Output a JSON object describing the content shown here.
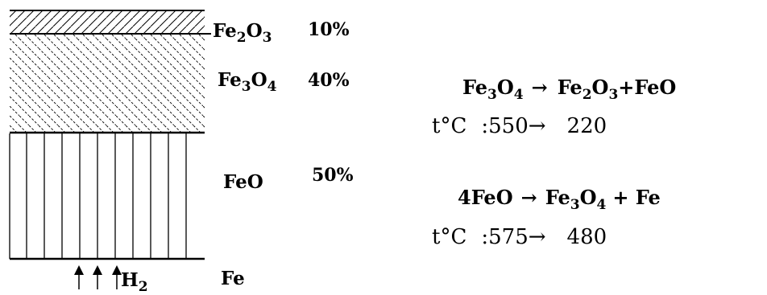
{
  "layers": [
    {
      "formula": "Fe",
      "sub": "2",
      "formula2": "O",
      "sub2": "3",
      "percent": "10%"
    },
    {
      "formula": "Fe",
      "sub": "3",
      "formula2": "O",
      "sub2": "4",
      "percent": "40%"
    },
    {
      "formula": "FeO",
      "percent": "50%"
    },
    {
      "formula": "Fe"
    }
  ],
  "gas": {
    "symbol": "H",
    "sub": "2"
  },
  "reaction1": {
    "lhs_a": "Fe",
    "lhs_sub1": "3",
    "lhs_b": "O",
    "lhs_sub2": "4",
    "arrow": "→",
    "rhs_a": "Fe",
    "rhs_sub1": "2",
    "rhs_b": "O",
    "rhs_sub2": "3",
    "rhs_c": "+FeO"
  },
  "temp1": {
    "prefix": "t°C",
    "from": ":550",
    "arrow": "→",
    "to": "220"
  },
  "reaction2": {
    "lhs": "4FeO",
    "arrow": "→",
    "rhs_a": "Fe",
    "rhs_sub1": "3",
    "rhs_b": "O",
    "rhs_sub2": "4",
    "rhs_c": "+ Fe"
  },
  "temp2": {
    "prefix": "t°C",
    "from": ":575",
    "arrow": "→",
    "to": "480"
  }
}
